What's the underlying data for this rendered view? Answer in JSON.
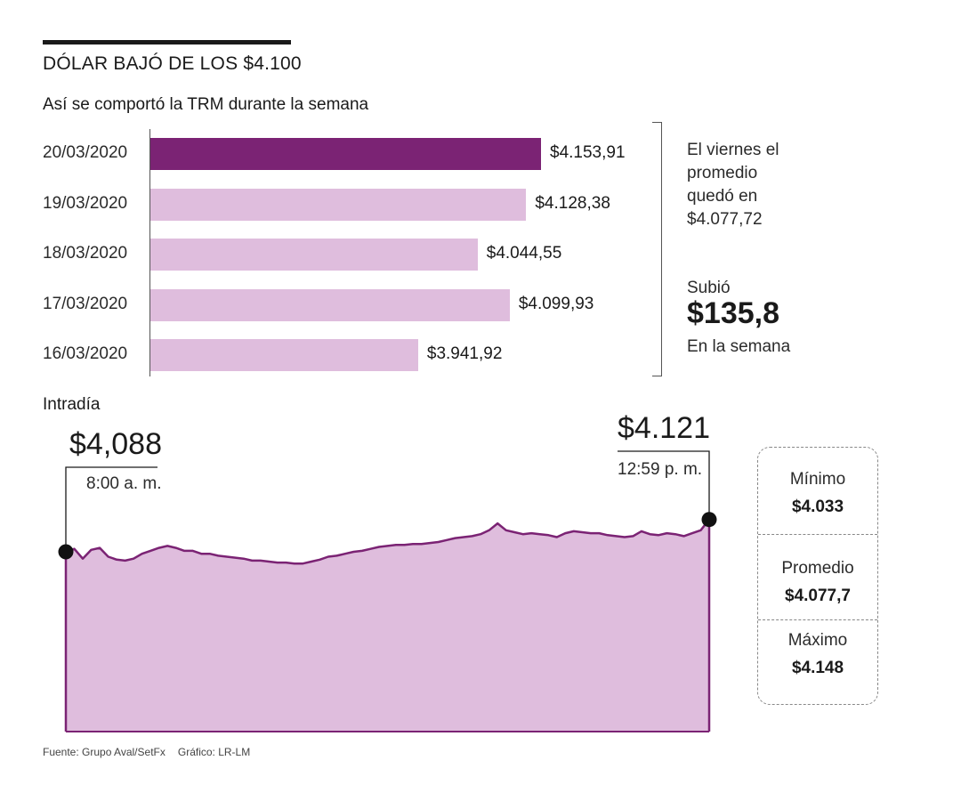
{
  "title": "DÓLAR BAJÓ DE LOS $4.100",
  "subtitle": "Así se comportó la TRM durante la semana",
  "colors": {
    "highlight_bar": "#7b2374",
    "bar": "#dfbddd",
    "area_fill": "#dfbddd",
    "area_line": "#7b2374"
  },
  "side_note": {
    "lines": [
      "El viernes el",
      "promedio",
      "quedó en",
      "$4.077,72"
    ],
    "change_label": "Subió",
    "change_value": "$135,8",
    "change_suffix": "En la semana"
  },
  "intraday": {
    "label": "Intradía",
    "start_value": "$4,088",
    "start_time": "8:00 a. m.",
    "end_value": "$4.121",
    "end_time": "12:59 p. m.",
    "stats": [
      {
        "label": "Mínimo",
        "value": "$4.033"
      },
      {
        "label": "Promedio",
        "value": "$4.077,7"
      },
      {
        "label": "Máximo",
        "value": "$4.148"
      }
    ]
  },
  "footer": {
    "source": "Fuente: Grupo Aval/SetFx",
    "credit": "Gráfico: LR-LM"
  },
  "chart_data": [
    {
      "type": "bar",
      "orientation": "horizontal",
      "categories": [
        "20/03/2020",
        "19/03/2020",
        "18/03/2020",
        "17/03/2020",
        "16/03/2020"
      ],
      "values": [
        4153.91,
        4128.38,
        4044.55,
        4099.93,
        3941.92
      ],
      "value_labels": [
        "$4.153,91",
        "$4.128,38",
        "$4.044,55",
        "$4.099,93",
        "$3.941,92"
      ],
      "highlight_index": 0
    },
    {
      "type": "area",
      "x_start": "8:00 a. m.",
      "x_end": "12:59 p. m.",
      "values": [
        4088,
        4091,
        4081,
        4090,
        4092,
        4083,
        4080,
        4079,
        4081,
        4086,
        4089,
        4092,
        4094,
        4092,
        4089,
        4089,
        4086,
        4086,
        4084,
        4083,
        4082,
        4081,
        4079,
        4079,
        4078,
        4077,
        4077,
        4076,
        4076,
        4078,
        4080,
        4083,
        4084,
        4086,
        4088,
        4089,
        4091,
        4093,
        4094,
        4095,
        4095,
        4096,
        4096,
        4097,
        4098,
        4100,
        4102,
        4103,
        4104,
        4106,
        4110,
        4117,
        4110,
        4108,
        4106,
        4107,
        4106,
        4105,
        4103,
        4107,
        4109,
        4108,
        4107,
        4107,
        4105,
        4104,
        4103,
        4104,
        4109,
        4106,
        4105,
        4107,
        4106,
        4104,
        4107,
        4110,
        4121
      ],
      "min": 4033,
      "max": 4148
    }
  ]
}
